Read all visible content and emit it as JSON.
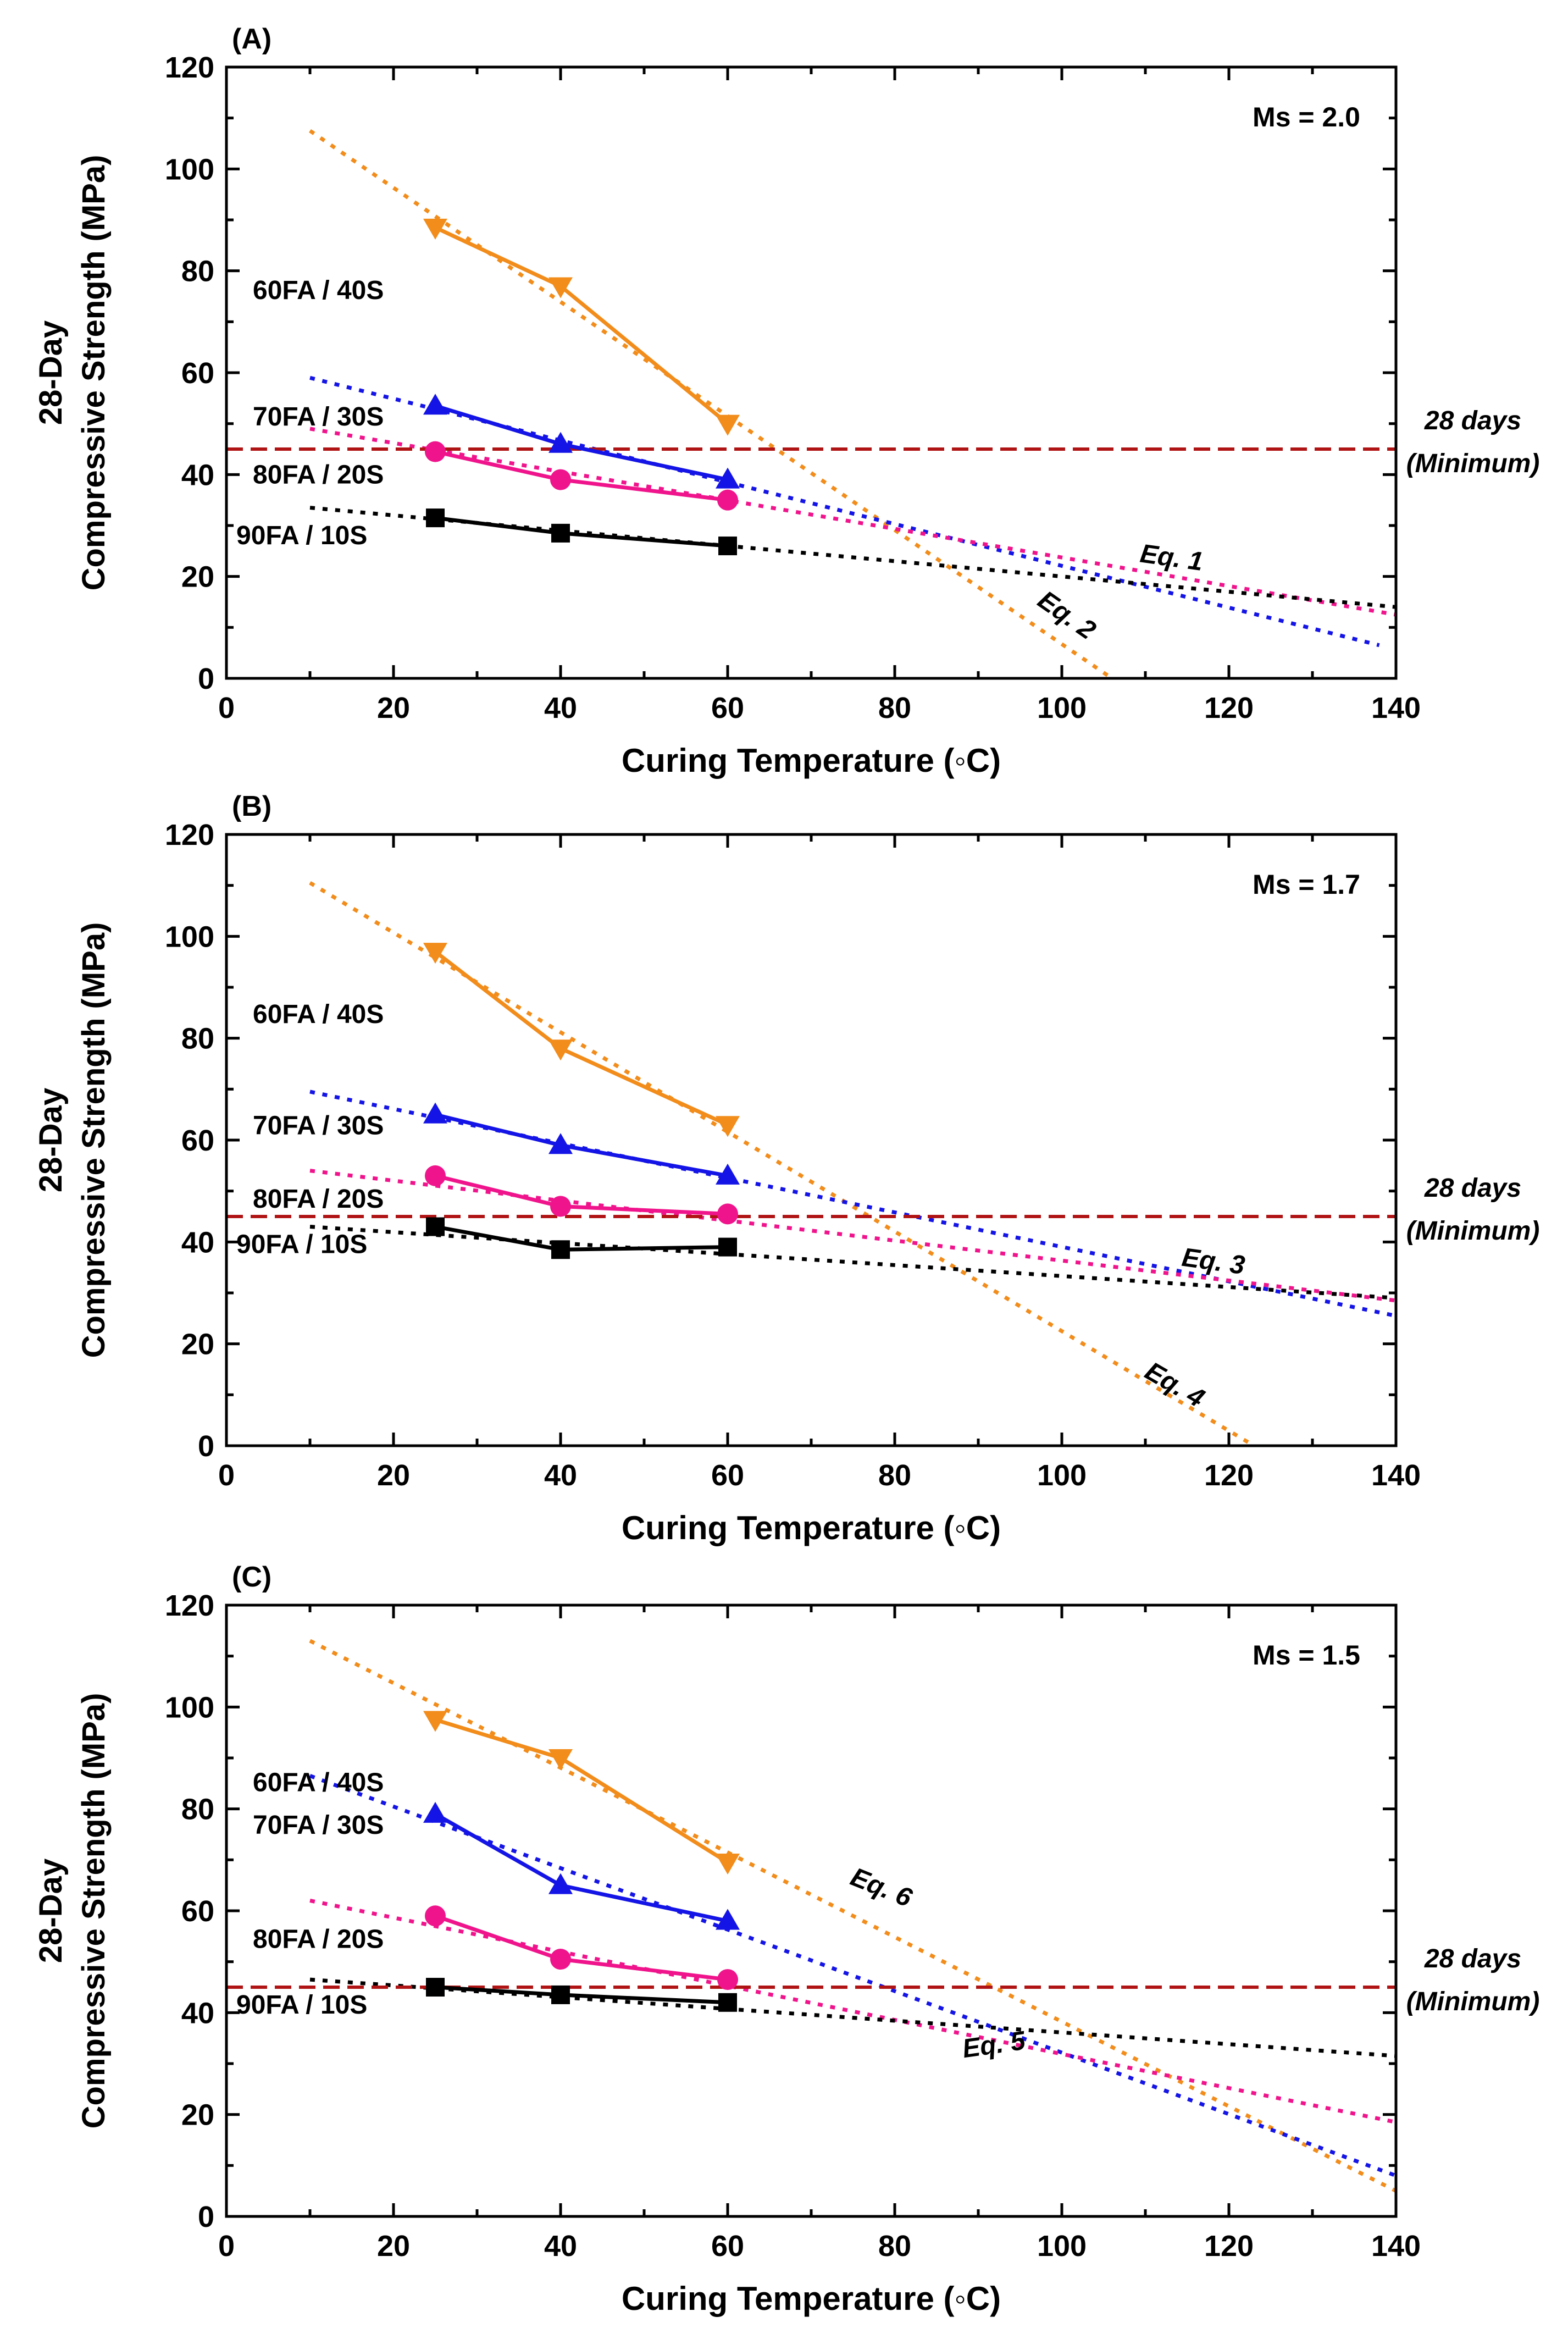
{
  "chart_data": [
    {
      "type": "line",
      "panel": "(A)",
      "ms_label": "Ms = 2.0",
      "xlabel": "Curing Temperature (◦C)",
      "ylabel_line1": "28-Day",
      "ylabel_line2": "Compressive Strength (MPa)",
      "xlim": [
        0,
        140
      ],
      "ylim": [
        0,
        120
      ],
      "xticks": [
        "0",
        "20",
        "40",
        "60",
        "80",
        "100",
        "120",
        "140"
      ],
      "yticks": [
        "0",
        "20",
        "40",
        "60",
        "80",
        "100",
        "120"
      ],
      "x": [
        25,
        40,
        60
      ],
      "reference": {
        "value": 45,
        "label_line1": "28 days",
        "label_line2": "(Minimum)",
        "color": "#b01313"
      },
      "series": [
        {
          "name": "60FA / 40S",
          "values": [
            88.5,
            77,
            50
          ],
          "color": "#f28c1a",
          "marker": "triangle-down",
          "fit": [
            [
              10,
              107.5
            ],
            [
              106,
              0
            ]
          ]
        },
        {
          "name": "70FA / 30S",
          "values": [
            53.5,
            46,
            39
          ],
          "color": "#1414e6",
          "marker": "triangle-up",
          "fit": [
            [
              10,
              59
            ],
            [
              138,
              6.5
            ]
          ]
        },
        {
          "name": "80FA / 20S",
          "values": [
            44.5,
            39,
            35
          ],
          "color": "#f0148c",
          "marker": "circle",
          "fit": [
            [
              10,
              49
            ],
            [
              140,
              12.5
            ]
          ]
        },
        {
          "name": "90FA / 10S",
          "values": [
            31.5,
            28.5,
            26
          ],
          "color": "#000000",
          "marker": "square",
          "fit": [
            [
              10,
              33.5
            ],
            [
              140,
              14
            ]
          ]
        }
      ],
      "equations": [
        {
          "text": "Eq. 1",
          "x": 113,
          "y": 22,
          "angle": 8
        },
        {
          "text": "Eq. 2",
          "x": 100,
          "y": 11,
          "angle": 35
        }
      ]
    },
    {
      "type": "line",
      "panel": "(B)",
      "ms_label": "Ms = 1.7",
      "xlabel": "Curing Temperature (◦C)",
      "ylabel_line1": "28-Day",
      "ylabel_line2": "Compressive Strength (MPa)",
      "xlim": [
        0,
        140
      ],
      "ylim": [
        0,
        120
      ],
      "xticks": [
        "0",
        "20",
        "40",
        "60",
        "80",
        "100",
        "120",
        "140"
      ],
      "yticks": [
        "0",
        "20",
        "40",
        "60",
        "80",
        "100",
        "120"
      ],
      "x": [
        25,
        40,
        60
      ],
      "reference": {
        "value": 45,
        "label_line1": "28 days",
        "label_line2": "(Minimum)",
        "color": "#b01313"
      },
      "series": [
        {
          "name": "60FA / 40S",
          "values": [
            97,
            78,
            63
          ],
          "color": "#f28c1a",
          "marker": "triangle-down",
          "fit": [
            [
              10,
              110.5
            ],
            [
              123,
              0
            ]
          ]
        },
        {
          "name": "70FA / 30S",
          "values": [
            65,
            59,
            53
          ],
          "color": "#1414e6",
          "marker": "triangle-up",
          "fit": [
            [
              10,
              69.5
            ],
            [
              140,
              25.5
            ]
          ]
        },
        {
          "name": "80FA / 20S",
          "values": [
            53,
            47,
            45.5
          ],
          "color": "#f0148c",
          "marker": "circle",
          "fit": [
            [
              10,
              54
            ],
            [
              140,
              28.5
            ]
          ]
        },
        {
          "name": "90FA / 10S",
          "values": [
            43,
            38.5,
            39
          ],
          "color": "#000000",
          "marker": "square",
          "fit": [
            [
              10,
              43
            ],
            [
              140,
              29
            ]
          ]
        }
      ],
      "equations": [
        {
          "text": "Eq. 3",
          "x": 118,
          "y": 34.5,
          "angle": 8
        },
        {
          "text": "Eq. 4",
          "x": 113,
          "y": 10.5,
          "angle": 30
        }
      ]
    },
    {
      "type": "line",
      "panel": "(C)",
      "ms_label": "Ms = 1.5",
      "xlabel": "Curing Temperature (◦C)",
      "ylabel_line1": "28-Day",
      "ylabel_line2": "Compressive Strength (MPa)",
      "xlim": [
        0,
        140
      ],
      "ylim": [
        0,
        120
      ],
      "xticks": [
        "0",
        "20",
        "40",
        "60",
        "80",
        "100",
        "120",
        "140"
      ],
      "yticks": [
        "0",
        "20",
        "40",
        "60",
        "80",
        "100",
        "120"
      ],
      "x": [
        25,
        40,
        60
      ],
      "reference": {
        "value": 45,
        "label_line1": "28 days",
        "label_line2": "(Minimum)",
        "color": "#b01313"
      },
      "series": [
        {
          "name": "60FA / 40S",
          "values": [
            97.5,
            90,
            69.5
          ],
          "color": "#f28c1a",
          "marker": "triangle-down",
          "fit": [
            [
              10,
              113
            ],
            [
              140,
              5
            ]
          ]
        },
        {
          "name": "70FA / 30S",
          "values": [
            79,
            65,
            58
          ],
          "color": "#1414e6",
          "marker": "triangle-up",
          "fit": [
            [
              10,
              86.5
            ],
            [
              140,
              8
            ]
          ]
        },
        {
          "name": "80FA / 20S",
          "values": [
            59,
            50.5,
            46.5
          ],
          "color": "#f0148c",
          "marker": "circle",
          "fit": [
            [
              10,
              62
            ],
            [
              140,
              18.5
            ]
          ]
        },
        {
          "name": "90FA / 10S",
          "values": [
            45,
            43.5,
            42
          ],
          "color": "#000000",
          "marker": "square",
          "fit": [
            [
              10,
              46.5
            ],
            [
              140,
              31.5
            ]
          ]
        }
      ],
      "equations": [
        {
          "text": "Eq. 5",
          "x": 92,
          "y": 32,
          "angle": -8
        },
        {
          "text": "Eq. 6",
          "x": 78,
          "y": 63,
          "angle": 22
        }
      ]
    }
  ]
}
